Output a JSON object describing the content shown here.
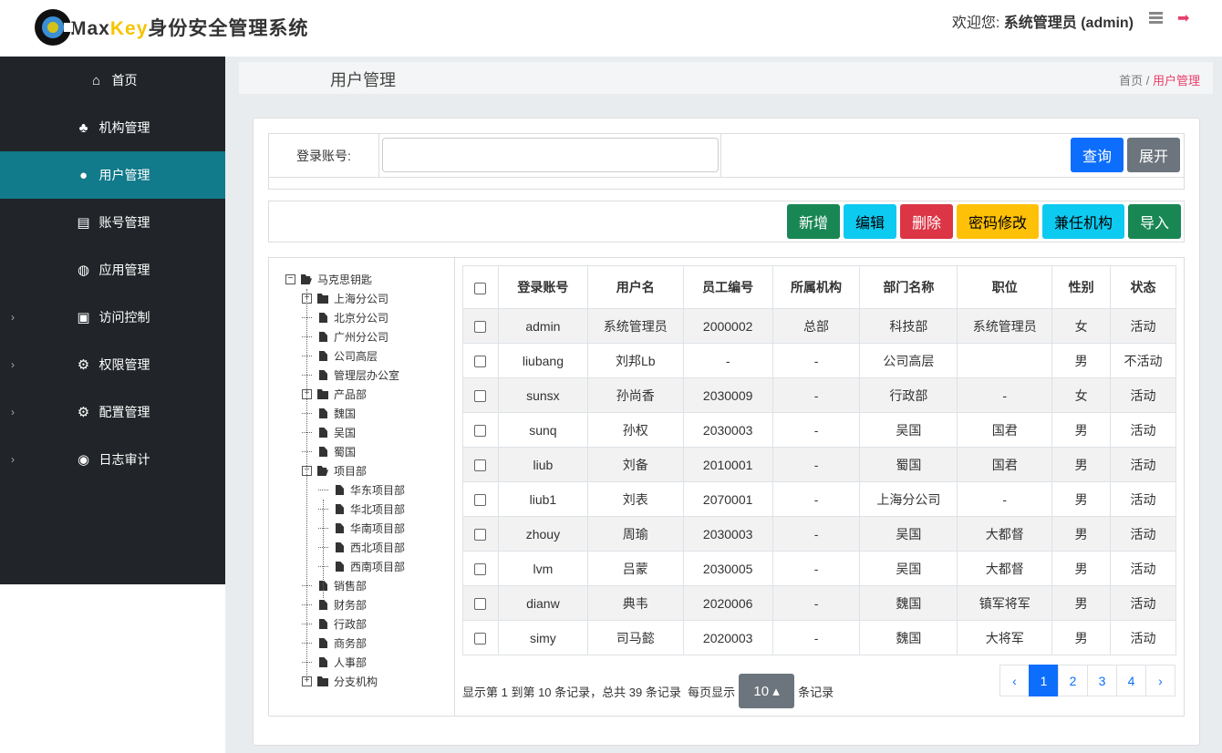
{
  "header": {
    "logo_max": "Max",
    "logo_key": "Key",
    "logo_cn": "身份安全管理系统",
    "welcome_prefix": "欢迎您:",
    "user": "系统管理员 (admin)",
    "icons": [
      "menu-icon",
      "logout-icon"
    ],
    "accent": "#e83e6c"
  },
  "sidebar": {
    "items": [
      {
        "label": "首页",
        "icon": "home-icon",
        "glyph": "⌂",
        "chevron": false
      },
      {
        "label": "机构管理",
        "icon": "sitemap-icon",
        "glyph": "♣",
        "chevron": false
      },
      {
        "label": "用户管理",
        "icon": "user-icon",
        "glyph": "●",
        "chevron": false,
        "active": true
      },
      {
        "label": "账号管理",
        "icon": "id-card-icon",
        "glyph": "▤",
        "chevron": false
      },
      {
        "label": "应用管理",
        "icon": "globe-icon",
        "glyph": "◍",
        "chevron": false
      },
      {
        "label": "访问控制",
        "icon": "cubes-icon",
        "glyph": "▣",
        "chevron": true
      },
      {
        "label": "权限管理",
        "icon": "cogs-icon",
        "glyph": "⚙",
        "chevron": true
      },
      {
        "label": "配置管理",
        "icon": "cogs-icon",
        "glyph": "⚙",
        "chevron": true
      },
      {
        "label": "日志审计",
        "icon": "eye-icon",
        "glyph": "◉",
        "chevron": true
      }
    ]
  },
  "titlebar": {
    "title": "用户管理",
    "crumb_home": "首页",
    "crumb_sep": " / ",
    "crumb_current": "用户管理"
  },
  "search": {
    "label": "登录账号:",
    "value": "",
    "query": "查询",
    "expand": "展开"
  },
  "toolbar": [
    {
      "label": "新增",
      "color": "#198754",
      "text": "#fff"
    },
    {
      "label": "编辑",
      "color": "#0dcaf0",
      "text": "#000"
    },
    {
      "label": "删除",
      "color": "#dc3545",
      "text": "#fff"
    },
    {
      "label": "密码修改",
      "color": "#ffc107",
      "text": "#000"
    },
    {
      "label": "兼任机构",
      "color": "#0dcaf0",
      "text": "#000"
    },
    {
      "label": "导入",
      "color": "#198754",
      "text": "#fff"
    }
  ],
  "tree": [
    {
      "label": "马克思钥匙",
      "level": 0,
      "type": "open",
      "toggle": "−"
    },
    {
      "label": "上海分公司",
      "level": 1,
      "type": "folder",
      "toggle": "+"
    },
    {
      "label": "北京分公司",
      "level": 1,
      "type": "file"
    },
    {
      "label": "广州分公司",
      "level": 1,
      "type": "file"
    },
    {
      "label": "公司高层",
      "level": 1,
      "type": "file"
    },
    {
      "label": "管理层办公室",
      "level": 1,
      "type": "file"
    },
    {
      "label": "产品部",
      "level": 1,
      "type": "folder",
      "toggle": "+"
    },
    {
      "label": "魏国",
      "level": 1,
      "type": "file"
    },
    {
      "label": "吴国",
      "level": 1,
      "type": "file"
    },
    {
      "label": "蜀国",
      "level": 1,
      "type": "file"
    },
    {
      "label": "项目部",
      "level": 1,
      "type": "open",
      "toggle": "−"
    },
    {
      "label": "华东项目部",
      "level": 2,
      "type": "file"
    },
    {
      "label": "华北项目部",
      "level": 2,
      "type": "file"
    },
    {
      "label": "华南项目部",
      "level": 2,
      "type": "file"
    },
    {
      "label": "西北项目部",
      "level": 2,
      "type": "file"
    },
    {
      "label": "西南项目部",
      "level": 2,
      "type": "file"
    },
    {
      "label": "销售部",
      "level": 1,
      "type": "file"
    },
    {
      "label": "财务部",
      "level": 1,
      "type": "file"
    },
    {
      "label": "行政部",
      "level": 1,
      "type": "file"
    },
    {
      "label": "商务部",
      "level": 1,
      "type": "file"
    },
    {
      "label": "人事部",
      "level": 1,
      "type": "file"
    },
    {
      "label": "分支机构",
      "level": 1,
      "type": "folder",
      "toggle": "+"
    }
  ],
  "table": {
    "columns": [
      "登录账号",
      "用户名",
      "员工编号",
      "所属机构",
      "部门名称",
      "职位",
      "性别",
      "状态"
    ],
    "rows": [
      [
        "admin",
        "系统管理员",
        "2000002",
        "总部",
        "科技部",
        "系统管理员",
        "女",
        "活动"
      ],
      [
        "liubang",
        "刘邦Lb",
        "-",
        "-",
        "公司高层",
        "",
        "男",
        "不活动"
      ],
      [
        "sunsx",
        "孙尚香",
        "2030009",
        "-",
        "行政部",
        "-",
        "女",
        "活动"
      ],
      [
        "sunq",
        "孙权",
        "2030003",
        "-",
        "吴国",
        "国君",
        "男",
        "活动"
      ],
      [
        "liub",
        "刘备",
        "2010001",
        "-",
        "蜀国",
        "国君",
        "男",
        "活动"
      ],
      [
        "liub1",
        "刘表",
        "2070001",
        "-",
        "上海分公司",
        "-",
        "男",
        "活动"
      ],
      [
        "zhouy",
        "周瑜",
        "2030003",
        "-",
        "吴国",
        "大都督",
        "男",
        "活动"
      ],
      [
        "lvm",
        "吕蒙",
        "2030005",
        "-",
        "吴国",
        "大都督",
        "男",
        "活动"
      ],
      [
        "dianw",
        "典韦",
        "2020006",
        "-",
        "魏国",
        "镇军将军",
        "男",
        "活动"
      ],
      [
        "simy",
        "司马懿",
        "2020003",
        "-",
        "魏国",
        "大将军",
        "男",
        "活动"
      ]
    ]
  },
  "pagination": {
    "info": "显示第 1 到第 10 条记录，总共 39 条记录",
    "per_page_prefix": "每页显示",
    "page_size": "10 ▴",
    "per_page_suffix": "条记录",
    "prev": "‹",
    "pages": [
      "1",
      "2",
      "3",
      "4"
    ],
    "current": "1",
    "next": "›"
  }
}
